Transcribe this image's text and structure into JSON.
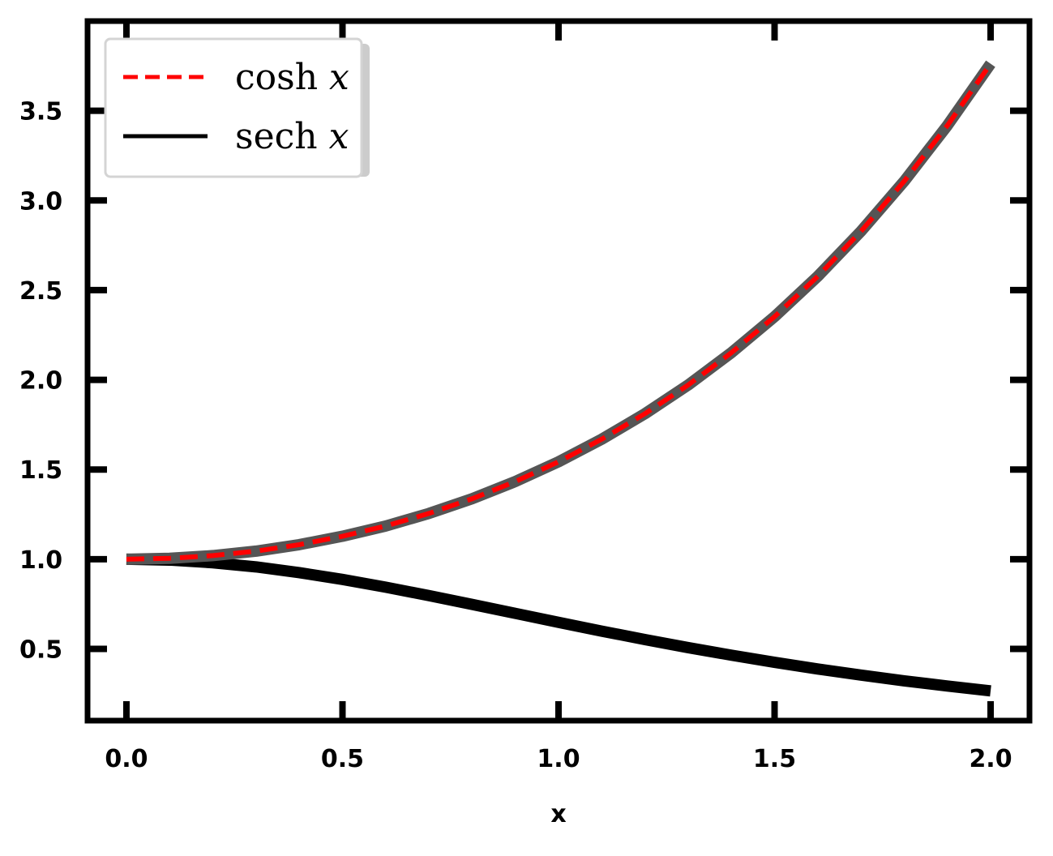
{
  "chart_data": {
    "type": "line",
    "title": "",
    "xlabel": "x",
    "ylabel": "",
    "xlim": [
      -0.09,
      2.09
    ],
    "ylim": [
      0.1,
      4.0
    ],
    "x_ticks": [
      0.0,
      0.5,
      1.0,
      1.5,
      2.0
    ],
    "x_tick_labels": [
      "0.0",
      "0.5",
      "1.0",
      "1.5",
      "2.0"
    ],
    "y_ticks": [
      0.5,
      1.0,
      1.5,
      2.0,
      2.5,
      3.0,
      3.5
    ],
    "y_tick_labels": [
      "0.5",
      "1.0",
      "1.5",
      "2.0",
      "2.5",
      "3.0",
      "3.5"
    ],
    "x": [
      0.0,
      0.1,
      0.2,
      0.3,
      0.4,
      0.5,
      0.6,
      0.7,
      0.8,
      0.9,
      1.0,
      1.1,
      1.2,
      1.3,
      1.4,
      1.5,
      1.6,
      1.7,
      1.8,
      1.9,
      2.0
    ],
    "series": [
      {
        "name": "cosh",
        "name_var": "x",
        "color": "#ff0000",
        "dash": "dashed",
        "values": [
          1.0,
          1.005,
          1.02,
          1.045,
          1.081,
          1.128,
          1.185,
          1.255,
          1.337,
          1.433,
          1.543,
          1.669,
          1.811,
          1.971,
          2.151,
          2.352,
          2.577,
          2.828,
          3.107,
          3.418,
          3.762
        ]
      },
      {
        "name": "sech",
        "name_var": "x",
        "color": "#000000",
        "dash": "solid",
        "values": [
          1.0,
          0.995,
          0.98,
          0.957,
          0.925,
          0.887,
          0.844,
          0.797,
          0.748,
          0.698,
          0.648,
          0.599,
          0.552,
          0.507,
          0.465,
          0.425,
          0.388,
          0.354,
          0.322,
          0.293,
          0.266
        ]
      }
    ],
    "legend": {
      "location": "top-left"
    },
    "grid": false
  }
}
